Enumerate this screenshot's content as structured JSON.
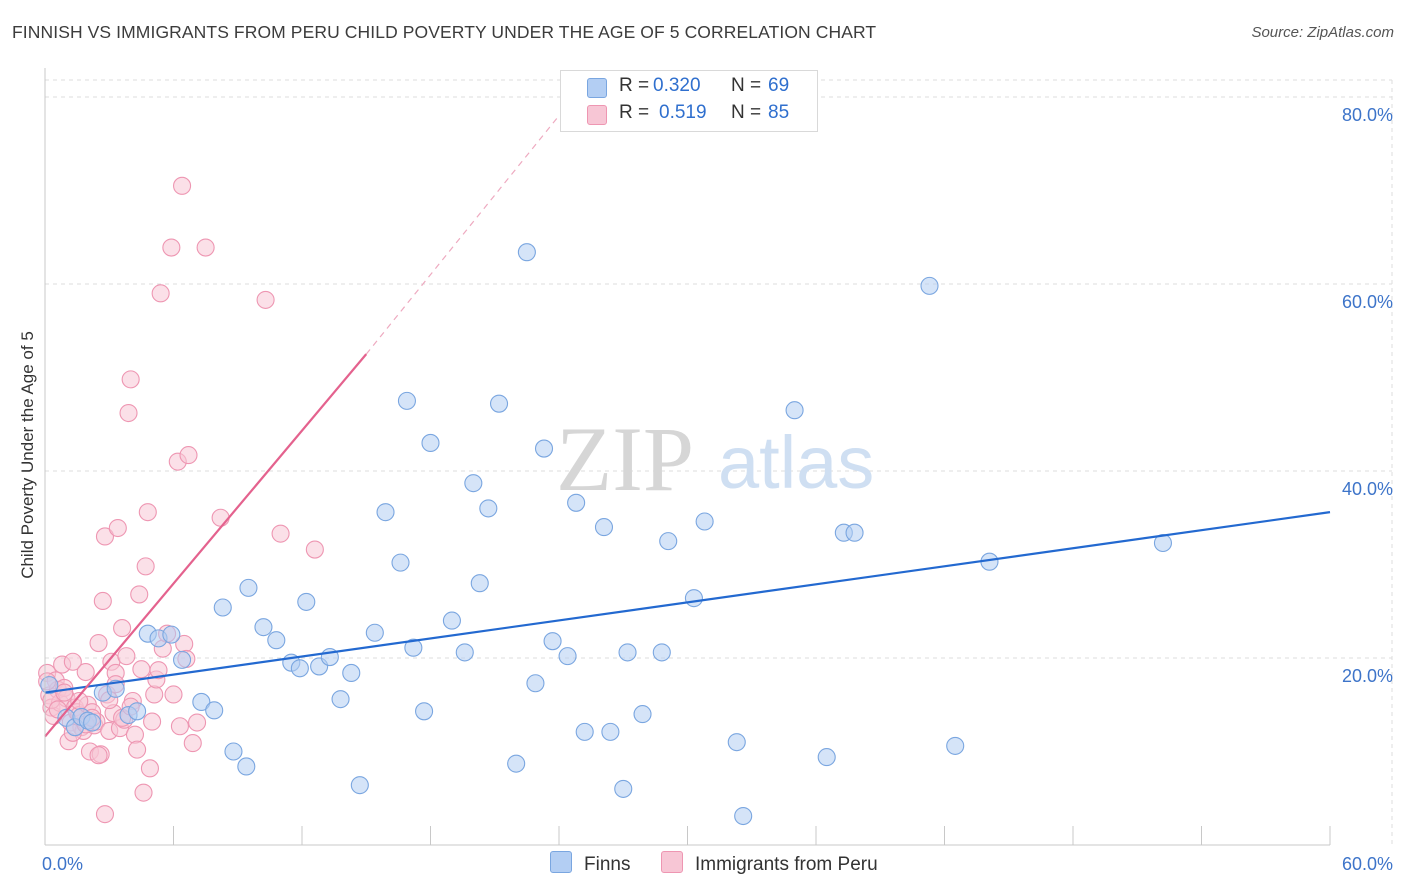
{
  "title": "FINNISH VS IMMIGRANTS FROM PERU CHILD POVERTY UNDER THE AGE OF 5 CORRELATION CHART",
  "source": "Source: ZipAtlas.com",
  "watermark": {
    "zip": "ZIP",
    "atlas": "atlas"
  },
  "colors": {
    "blue_fill": "#b3cef3",
    "blue_stroke": "#7aa6e0",
    "blue_line": "#2369d0",
    "pink_fill": "#f7c6d5",
    "pink_stroke": "#ee96b2",
    "pink_line": "#e4628e",
    "grid": "#dddddd",
    "axis_text": "#3d74c9"
  },
  "legend": {
    "r_label": "R =",
    "n_label": "N =",
    "finns": {
      "r": "0.320",
      "n": "69"
    },
    "peru": {
      "r": "0.519",
      "n": "85"
    }
  },
  "bottom_legend": {
    "finns": "Finns",
    "peru": "Immigrants from Peru"
  },
  "chart_data": {
    "type": "scatter",
    "title": "FINNISH VS IMMIGRANTS FROM PERU CHILD POVERTY UNDER THE AGE OF 5 CORRELATION CHART",
    "xlabel": "",
    "ylabel": "Child Poverty Under the Age of 5",
    "xlim": [
      0,
      60
    ],
    "ylim": [
      0,
      80
    ],
    "x_tick_labels": [
      "0.0%",
      "60.0%"
    ],
    "y_tick_labels": [
      "20.0%",
      "40.0%",
      "60.0%",
      "80.0%"
    ],
    "y_tick_values": [
      20,
      40,
      60,
      80
    ],
    "grid": true,
    "legend_position": "top-center",
    "series": [
      {
        "name": "Finns",
        "r": 0.32,
        "n": 69,
        "trend": {
          "x0": 0,
          "y0": 16.3,
          "x1": 60,
          "y1": 35.6
        },
        "points": [
          [
            0.2,
            17.1
          ],
          [
            1.0,
            13.6
          ],
          [
            1.4,
            12.6
          ],
          [
            1.7,
            13.7
          ],
          [
            2.0,
            13.3
          ],
          [
            2.2,
            13.1
          ],
          [
            2.7,
            16.3
          ],
          [
            3.3,
            16.7
          ],
          [
            3.9,
            13.9
          ],
          [
            4.3,
            14.3
          ],
          [
            4.8,
            22.6
          ],
          [
            5.3,
            22.1
          ],
          [
            5.9,
            22.5
          ],
          [
            6.4,
            19.8
          ],
          [
            7.3,
            15.3
          ],
          [
            7.9,
            14.4
          ],
          [
            8.3,
            25.4
          ],
          [
            8.8,
            10.0
          ],
          [
            9.4,
            8.4
          ],
          [
            9.5,
            27.5
          ],
          [
            10.2,
            23.3
          ],
          [
            10.8,
            21.9
          ],
          [
            11.5,
            19.5
          ],
          [
            11.9,
            18.9
          ],
          [
            12.2,
            26.0
          ],
          [
            12.8,
            19.1
          ],
          [
            13.3,
            20.1
          ],
          [
            13.8,
            15.6
          ],
          [
            14.3,
            18.4
          ],
          [
            14.7,
            6.4
          ],
          [
            15.4,
            22.7
          ],
          [
            15.9,
            35.6
          ],
          [
            16.6,
            30.2
          ],
          [
            16.9,
            47.5
          ],
          [
            17.2,
            21.1
          ],
          [
            17.7,
            14.3
          ],
          [
            18.0,
            43.0
          ],
          [
            19.0,
            24.0
          ],
          [
            19.6,
            20.6
          ],
          [
            20.0,
            38.7
          ],
          [
            20.3,
            28.0
          ],
          [
            20.7,
            36.0
          ],
          [
            21.2,
            47.2
          ],
          [
            22.0,
            8.7
          ],
          [
            22.5,
            63.4
          ],
          [
            22.9,
            17.3
          ],
          [
            23.3,
            42.4
          ],
          [
            23.7,
            21.8
          ],
          [
            24.4,
            20.2
          ],
          [
            24.8,
            36.6
          ],
          [
            25.2,
            12.1
          ],
          [
            26.1,
            34.0
          ],
          [
            26.4,
            12.1
          ],
          [
            27.0,
            6.0
          ],
          [
            27.2,
            20.6
          ],
          [
            27.9,
            14.0
          ],
          [
            28.8,
            20.6
          ],
          [
            29.1,
            32.5
          ],
          [
            30.3,
            26.4
          ],
          [
            30.8,
            34.6
          ],
          [
            32.3,
            11.0
          ],
          [
            32.6,
            3.1
          ],
          [
            35.0,
            46.5
          ],
          [
            36.5,
            9.4
          ],
          [
            37.3,
            33.4
          ],
          [
            37.8,
            33.4
          ],
          [
            41.3,
            59.8
          ],
          [
            42.5,
            10.6
          ],
          [
            44.1,
            30.3
          ],
          [
            52.2,
            32.3
          ]
        ]
      },
      {
        "name": "Immigrants from Peru",
        "r": 0.519,
        "n": 85,
        "trend": {
          "x0": 0,
          "y0": 11.6,
          "x1": 15,
          "y1": 52.5
        },
        "trend_dashed": {
          "x0": 15,
          "y0": 52.5,
          "x1": 24,
          "y1": 78.0
        },
        "points": [
          [
            0.1,
            18.4
          ],
          [
            0.2,
            16.0
          ],
          [
            0.3,
            14.7
          ],
          [
            0.4,
            13.8
          ],
          [
            0.5,
            17.6
          ],
          [
            0.6,
            16.6
          ],
          [
            0.7,
            15.2
          ],
          [
            0.8,
            19.3
          ],
          [
            0.9,
            16.8
          ],
          [
            1.0,
            15.7
          ],
          [
            1.1,
            11.1
          ],
          [
            1.2,
            13.1
          ],
          [
            1.3,
            19.6
          ],
          [
            1.4,
            14.7
          ],
          [
            1.5,
            14.2
          ],
          [
            1.6,
            13.9
          ],
          [
            1.7,
            12.6
          ],
          [
            1.8,
            12.2
          ],
          [
            1.9,
            18.5
          ],
          [
            2.0,
            15.0
          ],
          [
            2.1,
            10.0
          ],
          [
            2.2,
            14.2
          ],
          [
            2.3,
            12.8
          ],
          [
            2.4,
            13.2
          ],
          [
            2.5,
            21.6
          ],
          [
            2.6,
            9.7
          ],
          [
            2.7,
            26.1
          ],
          [
            2.8,
            33.0
          ],
          [
            2.9,
            16.1
          ],
          [
            3.0,
            12.2
          ],
          [
            3.1,
            19.6
          ],
          [
            3.2,
            14.1
          ],
          [
            3.3,
            18.4
          ],
          [
            3.4,
            33.9
          ],
          [
            3.5,
            12.5
          ],
          [
            3.6,
            23.2
          ],
          [
            3.7,
            13.4
          ],
          [
            3.8,
            20.2
          ],
          [
            3.9,
            46.2
          ],
          [
            4.0,
            49.8
          ],
          [
            4.1,
            15.4
          ],
          [
            4.2,
            11.8
          ],
          [
            4.3,
            10.2
          ],
          [
            4.4,
            26.8
          ],
          [
            4.5,
            18.8
          ],
          [
            4.6,
            5.6
          ],
          [
            4.7,
            29.8
          ],
          [
            4.8,
            35.6
          ],
          [
            4.9,
            8.2
          ],
          [
            5.0,
            13.2
          ],
          [
            5.1,
            16.1
          ],
          [
            5.2,
            17.7
          ],
          [
            5.3,
            18.7
          ],
          [
            5.4,
            59.0
          ],
          [
            5.5,
            21.0
          ],
          [
            5.7,
            22.6
          ],
          [
            5.9,
            63.9
          ],
          [
            6.0,
            16.1
          ],
          [
            6.2,
            41.0
          ],
          [
            6.3,
            12.7
          ],
          [
            6.4,
            70.5
          ],
          [
            6.5,
            21.5
          ],
          [
            6.6,
            19.9
          ],
          [
            6.7,
            41.7
          ],
          [
            6.9,
            10.9
          ],
          [
            7.1,
            13.1
          ],
          [
            7.5,
            63.9
          ],
          [
            8.2,
            35.0
          ],
          [
            10.3,
            58.3
          ],
          [
            11.0,
            33.3
          ],
          [
            12.6,
            31.6
          ],
          [
            0.1,
            17.5
          ],
          [
            0.3,
            15.5
          ],
          [
            0.6,
            14.5
          ],
          [
            0.9,
            16.3
          ],
          [
            1.3,
            12.0
          ],
          [
            1.6,
            15.4
          ],
          [
            1.9,
            12.9
          ],
          [
            2.2,
            13.6
          ],
          [
            2.5,
            9.6
          ],
          [
            2.8,
            3.3
          ],
          [
            3.0,
            15.5
          ],
          [
            3.3,
            17.2
          ],
          [
            3.6,
            13.6
          ],
          [
            4.0,
            14.8
          ]
        ]
      }
    ]
  }
}
